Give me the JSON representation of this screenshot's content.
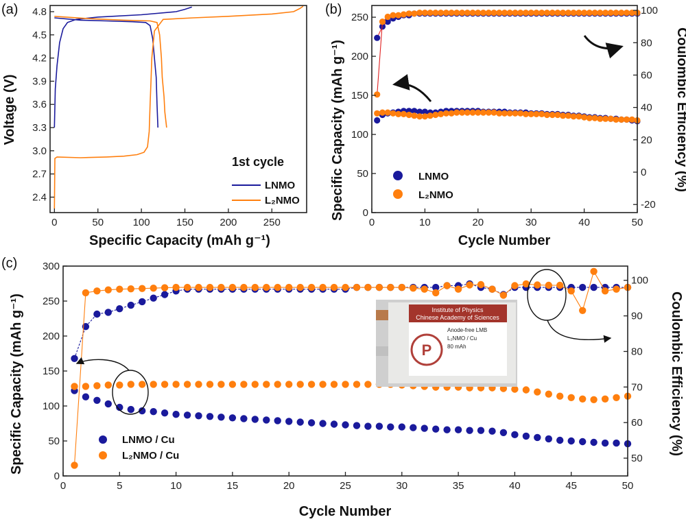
{
  "colors": {
    "lnmo": "#1a1a9c",
    "l2nmo": "#ff7f0e",
    "ce_fit": "#e02020",
    "photo_banner": "#a3342b",
    "photo_logo": "#b0403a"
  },
  "panels": {
    "a": {
      "label": "(a)",
      "xlabel": "Specific Capacity (mAh g⁻¹)",
      "ylabel": "Voltage (V)",
      "xlim": [
        -5,
        290
      ],
      "ylim": [
        2.2,
        4.88
      ],
      "xticks": [
        "0",
        "50",
        "100",
        "150",
        "200",
        "250"
      ],
      "yticks": [
        "2.4",
        "2.7",
        "3.0",
        "3.3",
        "3.6",
        "3.9",
        "4.2",
        "4.5",
        "4.8"
      ],
      "annotation": "1st cycle",
      "legend": [
        {
          "label": "LNMO"
        },
        {
          "label": "L₂NMO"
        }
      ]
    },
    "b": {
      "label": "(b)",
      "xlabel": "Cycle Number",
      "ylabel_left": "Specific Capacity (mAh g⁻¹)",
      "ylabel_right": "Coulombic Efficiency (%)",
      "xticks": [
        "0",
        "10",
        "20",
        "30",
        "40",
        "50"
      ],
      "yticks_left": [
        "0",
        "50",
        "100",
        "150",
        "200",
        "250"
      ],
      "yticks_right": [
        "-20",
        "0",
        "20",
        "40",
        "60",
        "80",
        "100"
      ],
      "legend": [
        {
          "label": "LNMO"
        },
        {
          "label": "L₂NMO"
        }
      ]
    },
    "c": {
      "label": "(c)",
      "xlabel": "Cycle Number",
      "ylabel_left": "Specific Capacity (mAh g⁻¹)",
      "ylabel_right": "Coulombic Efficiency (%)",
      "xticks": [
        "0",
        "5",
        "10",
        "15",
        "20",
        "25",
        "30",
        "35",
        "40",
        "45",
        "50"
      ],
      "yticks_left": [
        "0",
        "50",
        "100",
        "150",
        "200",
        "250",
        "300"
      ],
      "yticks_right": [
        "50",
        "60",
        "70",
        "80",
        "90",
        "100"
      ],
      "legend": [
        {
          "label": "LNMO / Cu"
        },
        {
          "label": "L₂NMO / Cu"
        }
      ],
      "photo": {
        "banner_line1": "Institute of Physics",
        "banner_line2": "Chinese Academy of Sciences",
        "line1": "Anode-free LMB",
        "line2": "L₂NMO / Cu",
        "line3": "80 mAh"
      }
    }
  },
  "chart_data": [
    {
      "panel": "a",
      "type": "line",
      "xlabel": "Specific Capacity (mAh g⁻¹)",
      "ylabel": "Voltage (V)",
      "xlim": [
        -5,
        290
      ],
      "ylim": [
        2.2,
        4.88
      ],
      "series": [
        {
          "name": "LNMO",
          "segment": "charge",
          "points": [
            [
              0,
              3.3
            ],
            [
              1,
              3.8
            ],
            [
              3,
              4.1
            ],
            [
              6,
              4.4
            ],
            [
              10,
              4.58
            ],
            [
              15,
              4.66
            ],
            [
              25,
              4.7
            ],
            [
              50,
              4.73
            ],
            [
              100,
              4.76
            ],
            [
              140,
              4.8
            ],
            [
              150,
              4.83
            ],
            [
              158,
              4.86
            ]
          ]
        },
        {
          "name": "LNMO",
          "segment": "discharge",
          "points": [
            [
              0,
              4.72
            ],
            [
              30,
              4.69
            ],
            [
              60,
              4.68
            ],
            [
              90,
              4.67
            ],
            [
              105,
              4.66
            ],
            [
              110,
              4.62
            ],
            [
              113,
              4.45
            ],
            [
              115,
              4.2
            ],
            [
              117,
              3.95
            ],
            [
              118,
              3.6
            ],
            [
              119,
              3.3
            ]
          ]
        },
        {
          "name": "L₂NMO",
          "segment": "charge",
          "points": [
            [
              0,
              2.25
            ],
            [
              0.5,
              2.9
            ],
            [
              3,
              2.92
            ],
            [
              30,
              2.91
            ],
            [
              60,
              2.92
            ],
            [
              80,
              2.93
            ],
            [
              95,
              2.95
            ],
            [
              103,
              2.98
            ],
            [
              107,
              3.05
            ],
            [
              109,
              3.25
            ],
            [
              110,
              3.6
            ],
            [
              111,
              3.9
            ],
            [
              112,
              4.2
            ],
            [
              115,
              4.55
            ],
            [
              125,
              4.7
            ],
            [
              160,
              4.72
            ],
            [
              200,
              4.74
            ],
            [
              250,
              4.77
            ],
            [
              275,
              4.8
            ],
            [
              282,
              4.84
            ],
            [
              286,
              4.87
            ]
          ]
        },
        {
          "name": "L₂NMO",
          "segment": "discharge",
          "points": [
            [
              0,
              4.74
            ],
            [
              40,
              4.71
            ],
            [
              80,
              4.69
            ],
            [
              110,
              4.68
            ],
            [
              118,
              4.66
            ],
            [
              121,
              4.5
            ],
            [
              123,
              4.2
            ],
            [
              124,
              3.95
            ],
            [
              126,
              3.7
            ],
            [
              127,
              3.5
            ],
            [
              129,
              3.3
            ]
          ]
        }
      ]
    },
    {
      "panel": "b",
      "type": "scatter",
      "xlabel": "Cycle Number",
      "ylabel_left": "Specific Capacity (mAh g⁻¹)",
      "ylabel_right": "Coulombic Efficiency (%)",
      "xlim": [
        0,
        50
      ],
      "ylim_left": [
        0,
        265
      ],
      "ylim_right": [
        -25,
        103
      ],
      "x": [
        1,
        2,
        3,
        4,
        5,
        6,
        7,
        8,
        9,
        10,
        11,
        12,
        13,
        14,
        15,
        16,
        17,
        18,
        19,
        20,
        21,
        22,
        23,
        24,
        25,
        26,
        27,
        28,
        29,
        30,
        31,
        32,
        33,
        34,
        35,
        36,
        37,
        38,
        39,
        40,
        41,
        42,
        43,
        44,
        45,
        46,
        47,
        48,
        49,
        50
      ],
      "series": [
        {
          "name": "LNMO",
          "axis": "left",
          "quantity": "Specific Capacity",
          "values": [
            118,
            125,
            127,
            128,
            129,
            130,
            130,
            130,
            129,
            129,
            128,
            128,
            129,
            130,
            130,
            130,
            130,
            130,
            130,
            130,
            129,
            129,
            129,
            129,
            129,
            128,
            128,
            128,
            128,
            127,
            127,
            127,
            126,
            126,
            126,
            125,
            125,
            124,
            124,
            123,
            122,
            122,
            121,
            121,
            120,
            120,
            119,
            119,
            118,
            117
          ]
        },
        {
          "name": "L₂NMO",
          "axis": "left",
          "quantity": "Specific Capacity",
          "values": [
            127,
            128,
            128,
            127,
            126,
            126,
            125,
            124,
            123,
            123,
            124,
            125,
            126,
            127,
            127,
            128,
            128,
            128,
            128,
            128,
            128,
            128,
            128,
            127,
            127,
            127,
            127,
            127,
            126,
            126,
            126,
            126,
            125,
            125,
            125,
            124,
            124,
            123,
            123,
            122,
            121,
            121,
            120,
            120,
            120,
            119,
            119,
            119,
            119,
            118
          ]
        },
        {
          "name": "LNMO",
          "axis": "right",
          "quantity": "Coulombic Efficiency",
          "values": [
            83,
            90,
            93,
            95,
            96,
            97,
            97,
            98,
            98,
            98,
            98,
            98,
            98,
            98,
            98,
            98,
            98,
            98,
            98,
            98,
            98,
            98,
            98,
            98,
            98,
            98,
            98,
            98,
            98,
            98,
            98,
            98,
            98,
            98,
            98,
            98,
            98,
            98,
            98,
            98,
            98,
            98,
            98,
            98,
            98,
            98,
            98,
            98,
            98,
            98
          ]
        },
        {
          "name": "L₂NMO",
          "axis": "right",
          "quantity": "Coulombic Efficiency",
          "values": [
            48,
            93,
            96,
            97,
            97,
            97.5,
            98,
            98,
            98.5,
            98.5,
            98.5,
            98.5,
            98.5,
            98.5,
            98.5,
            98.5,
            98.5,
            98.5,
            98.5,
            98.5,
            98.5,
            98.5,
            98.5,
            98.5,
            98.5,
            98.5,
            98.5,
            98.5,
            98.5,
            98.5,
            98.5,
            98.5,
            98.5,
            98.5,
            98.5,
            98.5,
            98.5,
            98.5,
            98.5,
            98.5,
            98.5,
            98.5,
            98.5,
            98.5,
            98.5,
            98.5,
            98.5,
            98.5,
            98.5,
            98.5
          ]
        }
      ]
    },
    {
      "panel": "c",
      "type": "scatter",
      "xlabel": "Cycle Number",
      "ylabel_left": "Specific Capacity (mAh g⁻¹)",
      "ylabel_right": "Coulombic Efficiency (%)",
      "xlim": [
        0,
        50
      ],
      "ylim_left": [
        0,
        300
      ],
      "ylim_right": [
        45,
        104
      ],
      "x": [
        1,
        2,
        3,
        4,
        5,
        6,
        7,
        8,
        9,
        10,
        11,
        12,
        13,
        14,
        15,
        16,
        17,
        18,
        19,
        20,
        21,
        22,
        23,
        24,
        25,
        26,
        27,
        28,
        29,
        30,
        31,
        32,
        33,
        34,
        35,
        36,
        37,
        38,
        39,
        40,
        41,
        42,
        43,
        44,
        45,
        46,
        47,
        48,
        49,
        50
      ],
      "series": [
        {
          "name": "LNMO / Cu",
          "axis": "left",
          "quantity": "Specific Capacity",
          "values": [
            122,
            113,
            108,
            103,
            98,
            95,
            93,
            92,
            90,
            88,
            87,
            86,
            85,
            84,
            83,
            82,
            81,
            80,
            79,
            78,
            77,
            76,
            75,
            74,
            73,
            72,
            71,
            71,
            70,
            70,
            69,
            68,
            67,
            66,
            66,
            65,
            65,
            64,
            62,
            59,
            57,
            55,
            53,
            51,
            50,
            49,
            48,
            47,
            47,
            46
          ]
        },
        {
          "name": "L₂NMO / Cu",
          "axis": "left",
          "quantity": "Specific Capacity",
          "values": [
            128,
            128,
            129,
            130,
            130,
            131,
            131,
            131,
            131,
            131,
            131,
            131,
            131,
            131,
            131,
            131,
            131,
            131,
            131,
            131,
            131,
            131,
            131,
            131,
            131,
            131,
            131,
            131,
            131,
            130,
            129,
            128,
            127,
            127,
            127,
            126,
            126,
            126,
            125,
            124,
            123,
            120,
            117,
            114,
            112,
            110,
            109,
            110,
            112,
            114
          ]
        },
        {
          "name": "LNMO / Cu",
          "axis": "right",
          "quantity": "Coulombic Efficiency",
          "values": [
            78,
            87,
            90.5,
            91,
            92,
            93,
            94,
            95,
            96,
            97,
            97.5,
            97.5,
            97.5,
            97.5,
            97.5,
            97.5,
            97.5,
            97.5,
            97.5,
            97.5,
            97.5,
            97.5,
            97.5,
            97.5,
            97.5,
            98,
            98,
            98,
            98,
            98,
            98,
            98,
            98,
            98.5,
            98.5,
            99,
            98,
            97.5,
            96,
            98,
            98,
            98,
            98,
            98,
            98,
            98,
            98,
            98,
            98,
            98
          ]
        },
        {
          "name": "L₂NMO / Cu",
          "axis": "right",
          "quantity": "Coulombic Efficiency",
          "values": [
            48,
            96.5,
            97,
            97.3,
            97.5,
            97.6,
            97.7,
            97.8,
            97.9,
            98,
            98,
            98,
            98,
            98,
            98,
            98,
            98,
            98,
            98,
            98,
            98,
            98,
            98,
            98,
            98,
            98,
            98,
            98,
            98,
            98,
            97.8,
            97.5,
            96.5,
            98.5,
            97.5,
            98.7,
            98.8,
            97.5,
            95.8,
            98.5,
            99,
            98.7,
            98.6,
            98.6,
            97,
            91.5,
            102.5,
            97,
            97.5,
            98
          ]
        }
      ]
    }
  ]
}
